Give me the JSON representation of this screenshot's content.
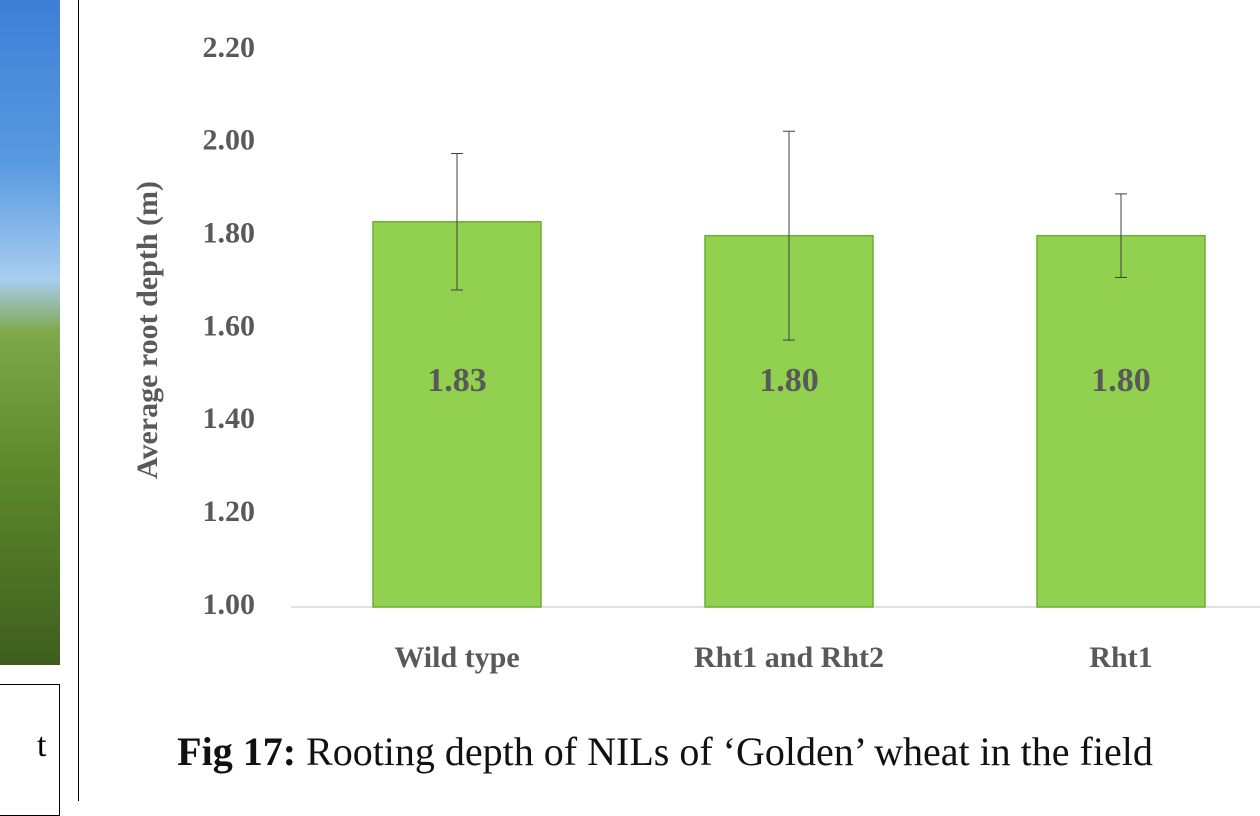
{
  "side_text": "t",
  "chart_data": {
    "type": "bar",
    "y_label": "Average root depth (m)",
    "categories": [
      "Wild type",
      "Rht1 and Rht2",
      "Rht1"
    ],
    "values": [
      1.83,
      1.8,
      1.8
    ],
    "value_labels": [
      "1.83",
      "1.80",
      "1.80"
    ],
    "errors": [
      0.147,
      0.225,
      0.09
    ],
    "color": "#92d050",
    "ylim": [
      1.0,
      2.2
    ],
    "yticks": [
      {
        "value": 1.0,
        "label": "1.00"
      },
      {
        "value": 1.2,
        "label": "1.20"
      },
      {
        "value": 1.4,
        "label": "1.40"
      },
      {
        "value": 1.6,
        "label": "1.60"
      },
      {
        "value": 1.8,
        "label": "1.80"
      },
      {
        "value": 2.0,
        "label": "2.00"
      },
      {
        "value": 2.2,
        "label": "2.20"
      }
    ],
    "grid": false,
    "caption_label": "Fig 17:",
    "caption": "Rooting depth of NILs of ‘Golden’ wheat in the field"
  }
}
